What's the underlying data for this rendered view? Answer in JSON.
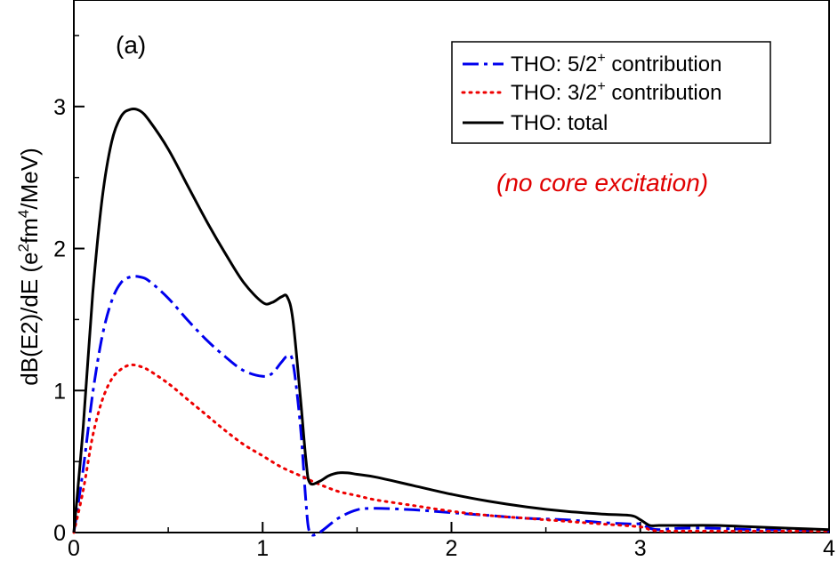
{
  "chart_data": {
    "type": "line",
    "title": "",
    "panel_label": "(a)",
    "annotation": "(no core excitation)",
    "xlabel": "",
    "ylabel": {
      "prefix": "dB(E2)/dE (e",
      "sup1": "2",
      "mid": "fm",
      "sup2": "4",
      "suffix": "/MeV)"
    },
    "xlim": [
      0,
      4
    ],
    "ylim": [
      0,
      3.75
    ],
    "xticks": [
      0,
      1,
      2,
      3,
      4
    ],
    "yticks": [
      0,
      1,
      2,
      3
    ],
    "xtick_labels": [
      "0",
      "1",
      "2",
      "3",
      "4"
    ],
    "ytick_labels": [
      "0",
      "1",
      "2",
      "3"
    ],
    "grid": false,
    "legend_position": "top-right",
    "series": [
      {
        "key": "s52",
        "legend": {
          "pre": "THO: 5/2",
          "sup": "+",
          "post": " contribution"
        },
        "color": "#0000ee",
        "style": "dash-dot",
        "x": [
          0,
          0.05,
          0.1,
          0.15,
          0.2,
          0.25,
          0.3,
          0.35,
          0.4,
          0.5,
          0.6,
          0.7,
          0.8,
          0.9,
          1.0,
          1.05,
          1.1,
          1.13,
          1.16,
          1.2,
          1.23,
          1.25,
          1.3,
          1.4,
          1.5,
          1.6,
          1.8,
          2.0,
          2.2,
          2.4,
          2.6,
          2.8,
          2.95,
          3.0,
          3.05,
          3.1,
          3.2,
          3.4,
          3.6,
          3.8,
          4.0
        ],
        "y": [
          0,
          0.45,
          0.98,
          1.38,
          1.63,
          1.76,
          1.8,
          1.8,
          1.77,
          1.65,
          1.5,
          1.36,
          1.24,
          1.14,
          1.1,
          1.12,
          1.2,
          1.24,
          1.2,
          0.75,
          0.2,
          0,
          0,
          0.1,
          0.16,
          0.17,
          0.16,
          0.14,
          0.12,
          0.1,
          0.09,
          0.07,
          0.06,
          0.06,
          0.03,
          0.02,
          0.03,
          0.03,
          0.02,
          0.02,
          0.01
        ]
      },
      {
        "key": "s32",
        "legend": {
          "pre": "THO: 3/2",
          "sup": "+",
          "post": " contribution"
        },
        "color": "#ee0000",
        "style": "dotted",
        "x": [
          0,
          0.05,
          0.1,
          0.15,
          0.2,
          0.25,
          0.3,
          0.35,
          0.4,
          0.5,
          0.6,
          0.7,
          0.8,
          0.9,
          1.0,
          1.1,
          1.2,
          1.3,
          1.4,
          1.5,
          1.6,
          1.8,
          2.0,
          2.2,
          2.4,
          2.6,
          2.8,
          3.0,
          3.05,
          3.1,
          3.2,
          3.4,
          3.6,
          3.8,
          4.0
        ],
        "y": [
          0,
          0.3,
          0.68,
          0.93,
          1.08,
          1.15,
          1.18,
          1.17,
          1.14,
          1.05,
          0.94,
          0.83,
          0.72,
          0.62,
          0.54,
          0.46,
          0.4,
          0.34,
          0.29,
          0.26,
          0.23,
          0.19,
          0.15,
          0.12,
          0.1,
          0.08,
          0.06,
          0.04,
          0.02,
          0.01,
          0.01,
          0.01,
          0.01,
          0.01,
          0.01
        ]
      },
      {
        "key": "total",
        "legend": {
          "pre": "THO: total",
          "sup": "",
          "post": ""
        },
        "color": "#000000",
        "style": "solid",
        "x": [
          0,
          0.05,
          0.1,
          0.15,
          0.2,
          0.25,
          0.3,
          0.35,
          0.4,
          0.5,
          0.6,
          0.7,
          0.8,
          0.9,
          1.0,
          1.05,
          1.1,
          1.13,
          1.16,
          1.2,
          1.23,
          1.25,
          1.3,
          1.35,
          1.4,
          1.45,
          1.5,
          1.6,
          1.8,
          2.0,
          2.2,
          2.4,
          2.6,
          2.8,
          2.95,
          3.0,
          3.05,
          3.1,
          3.2,
          3.4,
          3.6,
          3.8,
          4.0
        ],
        "y": [
          0,
          0.75,
          1.68,
          2.35,
          2.75,
          2.93,
          2.98,
          2.97,
          2.9,
          2.7,
          2.45,
          2.2,
          1.97,
          1.76,
          1.62,
          1.62,
          1.66,
          1.66,
          1.5,
          0.95,
          0.5,
          0.35,
          0.36,
          0.4,
          0.42,
          0.42,
          0.41,
          0.39,
          0.33,
          0.27,
          0.22,
          0.18,
          0.15,
          0.13,
          0.12,
          0.09,
          0.05,
          0.05,
          0.05,
          0.05,
          0.04,
          0.03,
          0.02
        ]
      }
    ]
  }
}
